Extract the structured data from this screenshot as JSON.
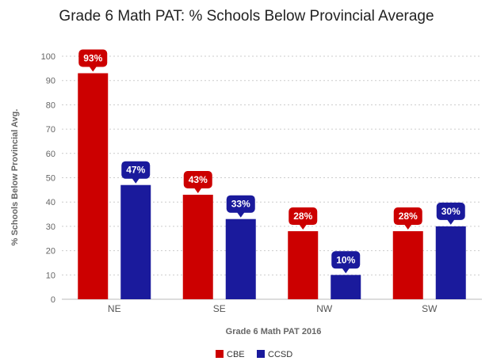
{
  "chart_data": {
    "type": "bar",
    "title": "Grade 6 Math PAT: % Schools Below Provincial Average",
    "xlabel": "Grade 6 Math PAT 2016",
    "ylabel": "% Schools Below Provincial Avg.",
    "categories": [
      "NE",
      "SE",
      "NW",
      "SW"
    ],
    "ylim": [
      0,
      100
    ],
    "yticks": [
      0,
      10,
      20,
      30,
      40,
      50,
      60,
      70,
      80,
      90,
      100
    ],
    "grid": true,
    "legend_position": "bottom",
    "series": [
      {
        "name": "CBE",
        "values": [
          93,
          43,
          28,
          28
        ],
        "labels": [
          "93%",
          "43%",
          "28%",
          "28%"
        ],
        "color": "#cc0000"
      },
      {
        "name": "CCSD",
        "values": [
          47,
          33,
          10,
          30
        ],
        "labels": [
          "47%",
          "33%",
          "10%",
          "30%"
        ],
        "color": "#1a1a9c"
      }
    ]
  }
}
